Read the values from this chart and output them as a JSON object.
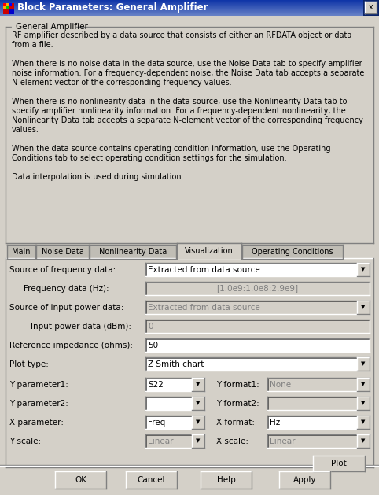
{
  "title_bar_text": "Block Parameters: General Amplifier",
  "dialog_bg": "#d4d0c8",
  "group_title": "General Amplifier",
  "description_lines": [
    "RF amplifier described by a data source that consists of either an RFDATA object or data",
    "from a file.",
    "",
    "When there is no noise data in the data source, use the Noise Data tab to specify amplifier",
    "noise information. For a frequency-dependent noise, the Noise Data tab accepts a separate",
    "N-element vector of the corresponding frequency values.",
    "",
    "When there is no nonlinearity data in the data source, use the Nonlinearity Data tab to",
    "specify amplifier nonlinearity information. For a frequency-dependent nonlinearity, the",
    "Nonlinearity Data tab accepts a separate N-element vector of the corresponding frequency",
    "values.",
    "",
    "When the data source contains operating condition information, use the Operating",
    "Conditions tab to select operating condition settings for the simulation.",
    "",
    "Data interpolation is used during simulation."
  ],
  "tabs": [
    "Main",
    "Noise Data",
    "Nonlinearity Data",
    "Visualization",
    "Operating Conditions"
  ],
  "active_tab": "Visualization",
  "param_rows": [
    {
      "left_label": "Y parameter1:",
      "left_value": "S22",
      "left_enabled": true,
      "right_label": "Y format1:",
      "right_value": "None",
      "right_enabled": false
    },
    {
      "left_label": "Y parameter2:",
      "left_value": "",
      "left_enabled": true,
      "right_label": "Y format2:",
      "right_value": "",
      "right_enabled": false
    },
    {
      "left_label": "X parameter:",
      "left_value": "Freq",
      "left_enabled": true,
      "right_label": "X format:",
      "right_value": "Hz",
      "right_enabled": true
    },
    {
      "left_label": "Y scale:",
      "left_value": "Linear",
      "left_enabled": false,
      "right_label": "X scale:",
      "right_value": "Linear",
      "right_enabled": false
    }
  ],
  "bottom_buttons": [
    "OK",
    "Cancel",
    "Help",
    "Apply"
  ],
  "input_disabled_fg": "#808080",
  "font_size": 7.5,
  "small_font": 7.0
}
